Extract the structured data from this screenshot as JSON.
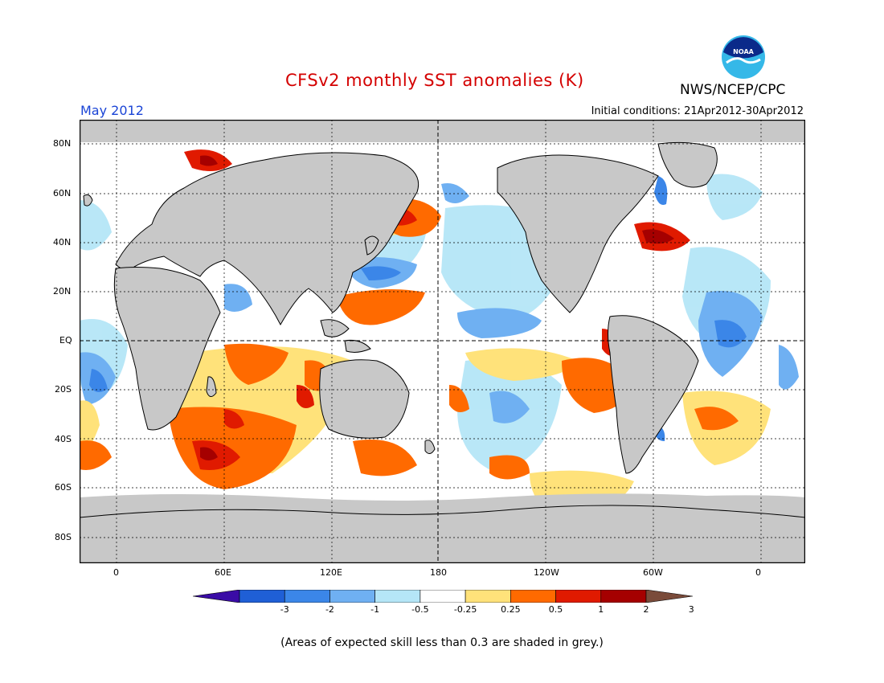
{
  "header": {
    "title": "CFSv2 monthly SST anomalies (K)",
    "organization": "NWS/NCEP/CPC",
    "month": "May 2012",
    "initial_conditions": "Initial conditions: 21Apr2012-30Apr2012",
    "logo_text": "NOAA"
  },
  "axes": {
    "lat_labels": [
      "80N",
      "60N",
      "40N",
      "20N",
      "EQ",
      "20S",
      "40S",
      "60S",
      "80S"
    ],
    "lon_labels": [
      "0",
      "60E",
      "120E",
      "180",
      "120W",
      "60W",
      "0"
    ]
  },
  "colorbar": {
    "ticks": [
      "-3",
      "-2",
      "-1",
      "-0.5",
      "-0.25",
      "0.25",
      "0.5",
      "1",
      "2",
      "3"
    ],
    "colors": [
      "#3a0ca6",
      "#1f5fd6",
      "#3b86e8",
      "#6fb0f2",
      "#b5e6f7",
      "#ffffff",
      "#ffe27a",
      "#ff6a00",
      "#e01a00",
      "#a50000",
      "#7a4b3a"
    ]
  },
  "footnote": "(Areas of expected skill less than 0.3 are shaded in grey.)",
  "colors": {
    "land": "#c8c8c8",
    "title": "#d40000",
    "month": "#1a44d6"
  }
}
